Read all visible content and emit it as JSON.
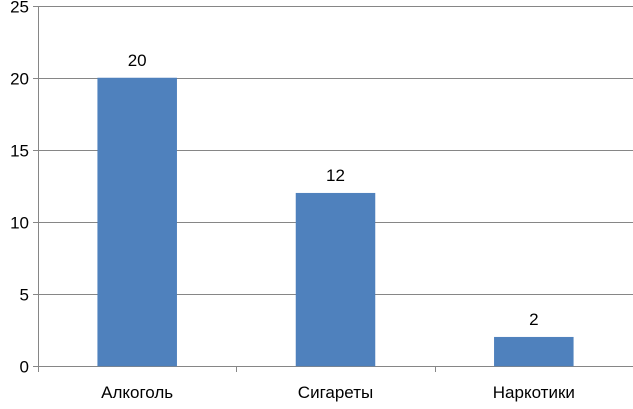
{
  "chart_data": {
    "type": "bar",
    "categories": [
      "Алкоголь",
      "Сигареты",
      "Наркотики"
    ],
    "values": [
      20,
      12,
      2
    ],
    "data_labels": [
      "20",
      "12",
      "2"
    ],
    "title": "",
    "xlabel": "",
    "ylabel": "",
    "ylim": [
      0,
      25
    ],
    "yticks": [
      0,
      5,
      10,
      15,
      20,
      25
    ],
    "ytick_labels": [
      "0",
      "5",
      "10",
      "15",
      "20",
      "25"
    ],
    "grid": true,
    "legend": "none",
    "colors": {
      "bar": "#4f81bd",
      "bar_edge": "#4a7ebb",
      "grid": "#868686",
      "axis": "#868686"
    }
  }
}
